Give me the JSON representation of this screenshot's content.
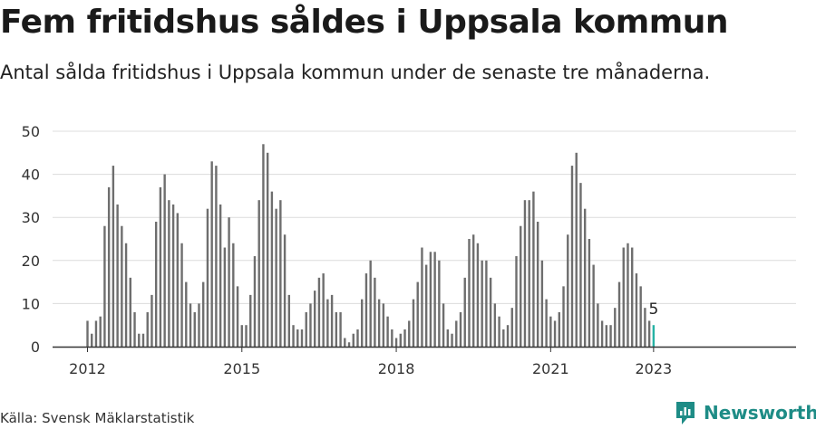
{
  "header": {
    "title": "Fem fritidshus såldes i Uppsala kommun",
    "subtitle": "Antal sålda fritidshus i Uppsala kommun under de senaste tre månaderna."
  },
  "footer": {
    "source": "Källa: Svensk Mäklarstatistik",
    "brand": "Newsworthy"
  },
  "colors": {
    "bar": "#6e6e6e",
    "highlight": "#26b3a5",
    "grid": "#dcdcdc",
    "axis": "#333333",
    "brand": "#1e8c86"
  },
  "chart_data": {
    "type": "bar",
    "title": "",
    "xlabel": "",
    "ylabel": "",
    "ylim": [
      0,
      50
    ],
    "yticks": [
      0,
      10,
      20,
      30,
      40,
      50
    ],
    "xticks": [
      "2012",
      "2015",
      "2018",
      "2021",
      "2023"
    ],
    "grid": true,
    "series": [
      {
        "values": [
          6,
          3,
          6,
          7,
          28,
          37,
          42,
          33,
          28,
          24,
          16,
          8,
          3,
          3,
          8,
          12,
          29,
          37,
          40,
          34,
          33,
          31,
          24,
          15,
          10,
          8,
          10,
          15,
          32,
          43,
          42,
          33,
          23,
          30,
          24,
          14,
          5,
          5,
          12,
          21,
          34,
          47,
          45,
          36,
          32,
          34,
          26,
          12,
          5,
          4,
          4,
          8,
          10,
          13,
          16,
          17,
          11,
          12,
          8,
          8,
          2,
          1,
          3,
          4,
          11,
          17,
          20,
          16,
          11,
          10,
          7,
          4,
          2,
          3,
          4,
          6,
          11,
          15,
          23,
          19,
          22,
          22,
          20,
          10,
          4,
          3,
          6,
          8,
          16,
          25,
          26,
          24,
          20,
          20,
          16,
          10,
          7,
          4,
          5,
          9,
          21,
          28,
          34,
          34,
          36,
          29,
          20,
          11,
          7,
          6,
          8,
          14,
          26,
          42,
          45,
          38,
          32,
          25,
          19,
          10,
          6,
          5,
          5,
          9,
          15,
          23,
          24,
          23,
          17,
          14,
          9,
          6,
          5
        ]
      }
    ],
    "highlight_last": true,
    "annotation": "5"
  }
}
